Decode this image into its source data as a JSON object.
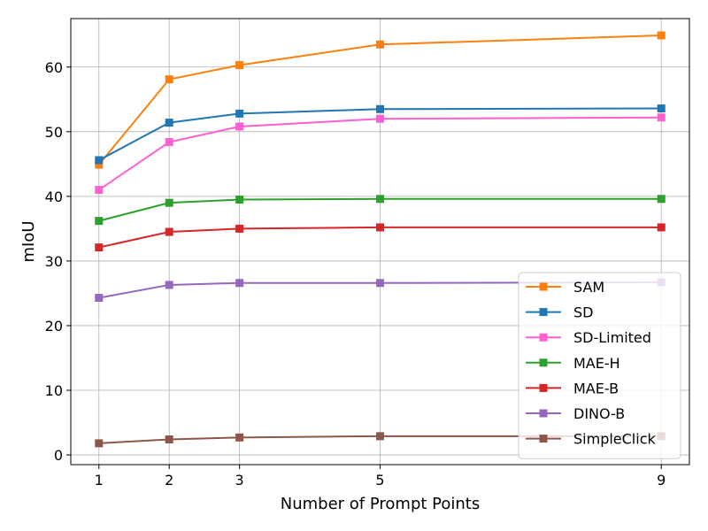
{
  "chart_data": {
    "type": "line",
    "title": "",
    "xlabel": "Number of Prompt Points",
    "ylabel": "mIoU",
    "x": [
      1,
      2,
      3,
      5,
      9
    ],
    "xticks": [
      1,
      2,
      3,
      5,
      9
    ],
    "yticks": [
      0,
      10,
      20,
      30,
      40,
      50,
      60
    ],
    "xlim": [
      0.6,
      9.4
    ],
    "ylim": [
      -1.5,
      67.5
    ],
    "grid": true,
    "legend_position": "lower-right",
    "marker": "square",
    "series": [
      {
        "name": "SAM",
        "color": "#ff7f0e",
        "values": [
          44.9,
          58.1,
          60.3,
          63.5,
          64.9
        ]
      },
      {
        "name": "SD",
        "color": "#1f77b4",
        "values": [
          45.6,
          51.4,
          52.8,
          53.5,
          53.6
        ]
      },
      {
        "name": "SD-Limited",
        "color": "#ff5fd0",
        "values": [
          41.0,
          48.4,
          50.8,
          52.0,
          52.2
        ]
      },
      {
        "name": "MAE-H",
        "color": "#2ca02c",
        "values": [
          36.2,
          39.0,
          39.5,
          39.6,
          39.6
        ]
      },
      {
        "name": "MAE-B",
        "color": "#d62728",
        "values": [
          32.1,
          34.5,
          35.0,
          35.2,
          35.2
        ]
      },
      {
        "name": "DINO-B",
        "color": "#9467bd",
        "values": [
          24.3,
          26.3,
          26.6,
          26.6,
          26.7
        ]
      },
      {
        "name": "SimpleClick",
        "color": "#8c564b",
        "values": [
          1.8,
          2.4,
          2.7,
          2.9,
          2.9
        ]
      }
    ]
  }
}
